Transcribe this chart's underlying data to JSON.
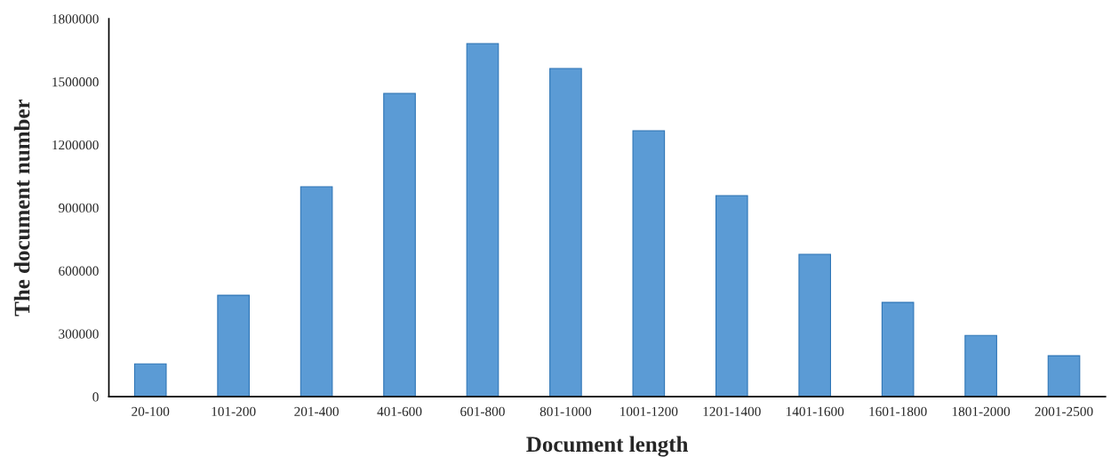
{
  "chart_data": {
    "type": "bar",
    "xlabel": "Document length",
    "ylabel": "The document number",
    "categories": [
      "20-100",
      "101-200",
      "201-400",
      "401-600",
      "601-800",
      "801-1000",
      "1001-1200",
      "1201-1400",
      "1401-1600",
      "1601-1800",
      "1801-2000",
      "2001-2500"
    ],
    "values": [
      156000,
      483000,
      1000000,
      1444000,
      1681000,
      1563000,
      1266000,
      957000,
      678000,
      449000,
      292000,
      195000
    ],
    "color": "#5b9bd5",
    "ylim": [
      0,
      1800000
    ],
    "yticks": [
      0,
      300000,
      600000,
      900000,
      1200000,
      1500000,
      1800000
    ],
    "grid": false
  }
}
